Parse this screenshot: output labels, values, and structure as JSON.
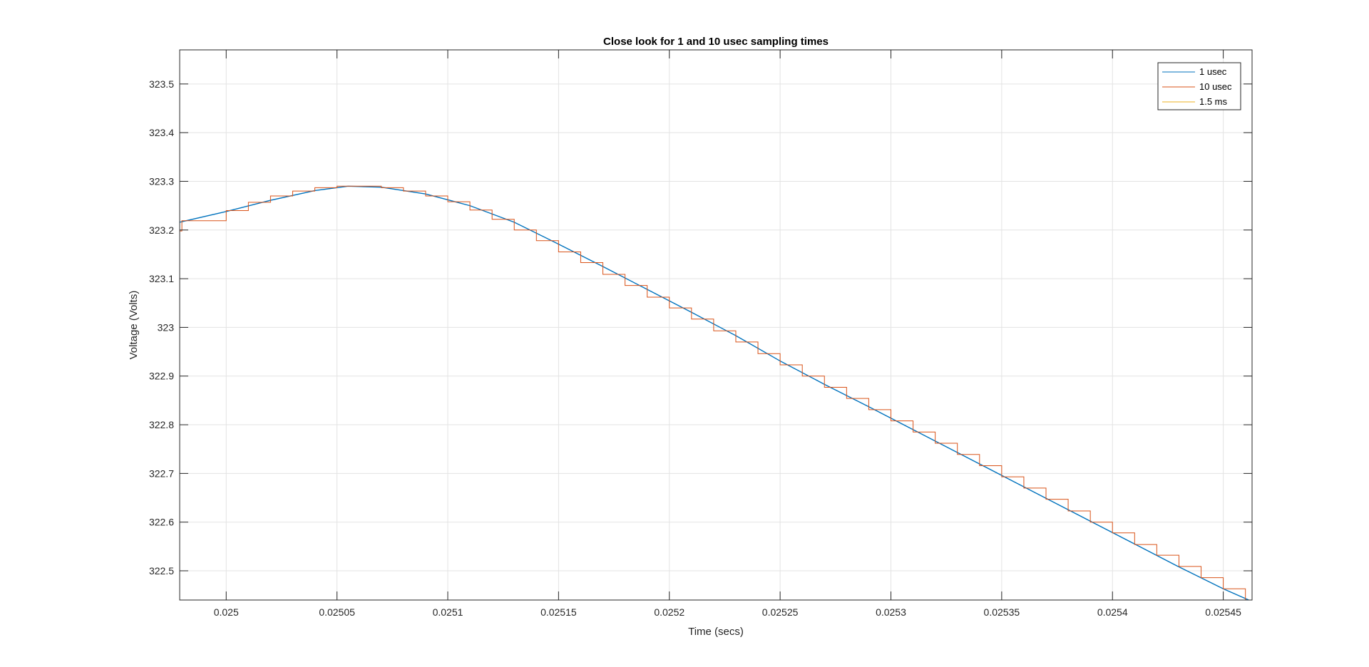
{
  "chart_data": {
    "type": "line",
    "title": "Close look for 1 and 10 usec sampling times",
    "xlabel": "Time (secs)",
    "ylabel": "Voltage (Volts)",
    "xlim": [
      0.024979,
      0.025463
    ],
    "ylim": [
      322.44,
      323.57
    ],
    "xticks": [
      0.025,
      0.02505,
      0.0251,
      0.02515,
      0.0252,
      0.02525,
      0.0253,
      0.02535,
      0.0254,
      0.02545
    ],
    "xtick_labels": [
      "0.025",
      "0.02505",
      "0.0251",
      "0.02515",
      "0.0252",
      "0.02525",
      "0.0253",
      "0.02535",
      "0.0254",
      "0.02545"
    ],
    "yticks": [
      322.5,
      322.6,
      322.7,
      322.8,
      322.9,
      323,
      323.1,
      323.2,
      323.3,
      323.4,
      323.5
    ],
    "ytick_labels": [
      "322.5",
      "322.6",
      "322.7",
      "322.8",
      "322.9",
      "323",
      "323.1",
      "323.2",
      "323.3",
      "323.4",
      "323.5"
    ],
    "grid": true,
    "legend_position": "top-right",
    "series": [
      {
        "name": "1 usec",
        "color": "#0072BD",
        "style": "line",
        "x": [
          0.024979,
          0.025,
          0.02502,
          0.02504,
          0.025055,
          0.02507,
          0.02509,
          0.02511,
          0.02513,
          0.02515,
          0.02517,
          0.02519,
          0.02521,
          0.02523,
          0.02525,
          0.02527,
          0.02529,
          0.02531,
          0.02533,
          0.02535,
          0.02537,
          0.02539,
          0.02541,
          0.02543,
          0.02545,
          0.025463
        ],
        "y": [
          323.216,
          323.238,
          323.261,
          323.281,
          323.29,
          323.288,
          323.274,
          323.25,
          323.216,
          323.171,
          323.125,
          323.078,
          323.031,
          322.983,
          322.931,
          322.883,
          322.837,
          322.79,
          322.743,
          322.696,
          322.649,
          322.602,
          322.555,
          322.508,
          322.463,
          322.437
        ]
      },
      {
        "name": "10 usec",
        "color": "#D95319",
        "style": "stairs",
        "x": [
          0.024979,
          0.02498,
          0.02499,
          0.025,
          0.02501,
          0.02502,
          0.02503,
          0.02504,
          0.02505,
          0.02506,
          0.02507,
          0.02508,
          0.02509,
          0.0251,
          0.02511,
          0.02512,
          0.02513,
          0.02514,
          0.02515,
          0.02516,
          0.02517,
          0.02518,
          0.02519,
          0.0252,
          0.02521,
          0.02522,
          0.02523,
          0.02524,
          0.02525,
          0.02526,
          0.02527,
          0.02528,
          0.02529,
          0.0253,
          0.02531,
          0.02532,
          0.02533,
          0.02534,
          0.02535,
          0.02536,
          0.02537,
          0.02538,
          0.02539,
          0.0254,
          0.02541,
          0.02542,
          0.02543,
          0.02544,
          0.02545,
          0.02546
        ],
        "y": [
          323.198,
          323.219,
          323.219,
          323.24,
          323.257,
          323.27,
          323.28,
          323.287,
          323.29,
          323.29,
          323.287,
          323.28,
          323.27,
          323.258,
          323.241,
          323.222,
          323.2,
          323.178,
          323.155,
          323.133,
          323.109,
          323.086,
          323.062,
          323.04,
          323.017,
          322.993,
          322.97,
          322.946,
          322.923,
          322.9,
          322.877,
          322.854,
          322.831,
          322.808,
          322.785,
          322.762,
          322.739,
          322.716,
          322.693,
          322.67,
          322.647,
          322.623,
          322.6,
          322.578,
          322.554,
          322.532,
          322.509,
          322.486,
          322.463,
          322.44
        ]
      },
      {
        "name": "1.5 ms",
        "color": "#EDB120",
        "style": "line",
        "x": [],
        "y": []
      }
    ]
  }
}
